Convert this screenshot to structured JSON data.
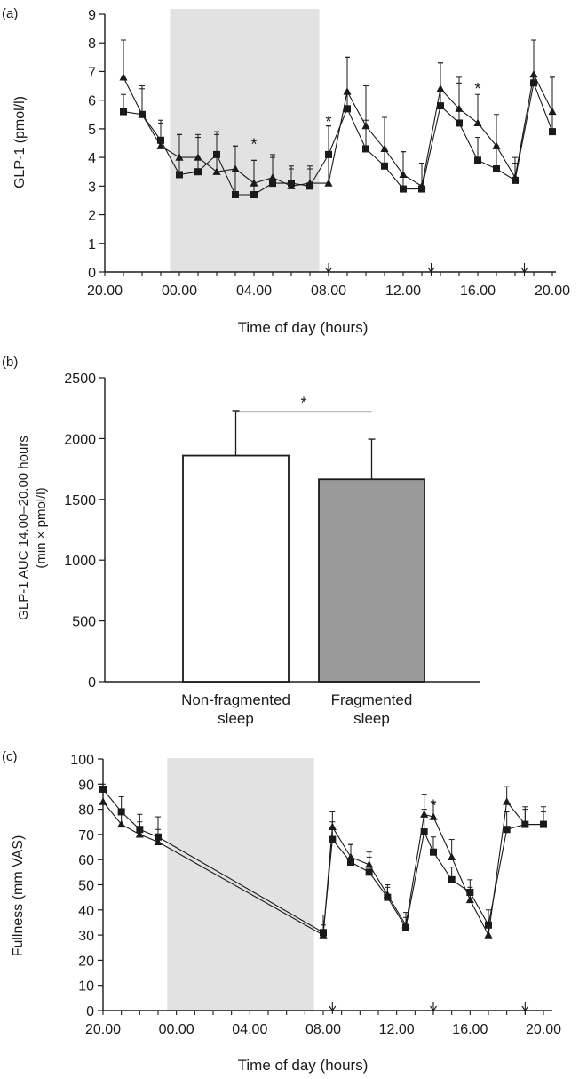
{
  "chart_data": [
    {
      "panel": "(a)",
      "type": "line",
      "ylabel": "GLP-1 (pmol/l)",
      "xlabel": "Time of day (hours)",
      "ylim": [
        0,
        9
      ],
      "yticks": [
        "0",
        "1",
        "2",
        "3",
        "4",
        "5",
        "6",
        "7",
        "8",
        "9"
      ],
      "xlim": [
        21,
        44
      ],
      "xticks": [
        {
          "x": 20,
          "label": "20.00"
        },
        {
          "x": 24,
          "label": "00.00"
        },
        {
          "x": 28,
          "label": "04.00"
        },
        {
          "x": 32,
          "label": "08.00"
        },
        {
          "x": 36,
          "label": "12.00"
        },
        {
          "x": 40,
          "label": "16.00"
        },
        {
          "x": 44,
          "label": "20.00"
        }
      ],
      "shaded_interval": [
        23.5,
        31.5
      ],
      "meal_arrows": [
        32.0,
        37.5,
        42.5
      ],
      "series": [
        {
          "marker": "triangle",
          "x": [
            21,
            22,
            23,
            24,
            25,
            26,
            27,
            28,
            29,
            30,
            31,
            32,
            33,
            34,
            35,
            36,
            37,
            38,
            39,
            40,
            41,
            42,
            43,
            44
          ],
          "y": [
            6.8,
            5.5,
            4.4,
            4.0,
            4.0,
            3.5,
            3.6,
            3.1,
            3.3,
            3.0,
            3.1,
            3.1,
            6.3,
            5.1,
            4.3,
            3.4,
            3.0,
            6.4,
            5.7,
            5.2,
            4.4,
            3.3,
            6.9,
            5.6
          ],
          "err": [
            1.3,
            1.0,
            0.8,
            0.8,
            0.7,
            1.3,
            0.8,
            0.8,
            0.7,
            0.7,
            0.6,
            2.0,
            1.2,
            1.4,
            1.1,
            0.8,
            0.8,
            0.9,
            0.9,
            1.0,
            1.1,
            0.7,
            1.2,
            1.2
          ]
        },
        {
          "marker": "square",
          "x": [
            21,
            22,
            23,
            24,
            25,
            26,
            27,
            28,
            29,
            30,
            31,
            32,
            33,
            34,
            35,
            36,
            37,
            38,
            39,
            40,
            41,
            42,
            43,
            44
          ],
          "y": [
            5.6,
            5.5,
            4.6,
            3.4,
            3.5,
            4.1,
            2.7,
            2.7,
            3.1,
            3.1,
            3.0,
            4.1,
            5.7,
            4.3,
            3.7,
            2.9,
            2.9,
            5.8,
            5.2,
            3.9,
            3.6,
            3.2,
            6.6,
            4.9
          ],
          "err": [
            0.6,
            0.9,
            0.7,
            1.4,
            1.3,
            0.8,
            1.7,
            1.2,
            1.0,
            0.5,
            0.6,
            1.0,
            1.8,
            1.0,
            1.7,
            1.3,
            0.9,
            1.5,
            1.6,
            0.8,
            0.8,
            0.6,
            1.5,
            1.9
          ]
        }
      ],
      "asterisks": [
        {
          "x": 28.0,
          "y": 4.45,
          "text": "*"
        },
        {
          "x": 32.0,
          "y": 5.25,
          "text": "*"
        },
        {
          "x": 40.0,
          "y": 6.4,
          "text": "*"
        }
      ]
    },
    {
      "panel": "(b)",
      "type": "bar",
      "ylabel_lines": [
        "GLP-1 AUC 14.00–20.00 hours",
        "(min × pmol/l)"
      ],
      "ylim": [
        0,
        2500
      ],
      "yticks": [
        "0",
        "500",
        "1000",
        "1500",
        "2000",
        "2500"
      ],
      "categories": [
        [
          "Non-fragmented",
          "sleep"
        ],
        [
          "Fragmented",
          "sleep"
        ]
      ],
      "values": [
        1860,
        1665
      ],
      "errors": [
        370,
        330
      ],
      "bar_colors": [
        "#ffffff",
        "#9a9a9a"
      ],
      "significance": {
        "text": "*",
        "y": 2220
      }
    },
    {
      "panel": "(c)",
      "type": "line",
      "ylabel": "Fullness (mm VAS)",
      "xlabel": "Time of day (hours)",
      "ylim": [
        0,
        100
      ],
      "yticks": [
        "0",
        "10",
        "20",
        "30",
        "40",
        "50",
        "60",
        "70",
        "80",
        "90",
        "100"
      ],
      "xlim": [
        20,
        44
      ],
      "xticks": [
        {
          "x": 20,
          "label": "20.00"
        },
        {
          "x": 24,
          "label": "00.00"
        },
        {
          "x": 28,
          "label": "04.00"
        },
        {
          "x": 32,
          "label": "08.00"
        },
        {
          "x": 36,
          "label": "12.00"
        },
        {
          "x": 40,
          "label": "16.00"
        },
        {
          "x": 44,
          "label": "20.00"
        }
      ],
      "shaded_interval": [
        23.5,
        31.5
      ],
      "meal_arrows": [
        32.5,
        38.0,
        43.0
      ],
      "series": [
        {
          "marker": "triangle",
          "x": [
            20,
            21,
            22,
            23,
            32,
            32.5,
            33.5,
            34.5,
            35.5,
            36.5,
            37.5,
            38,
            39,
            40,
            41,
            42,
            43,
            44
          ],
          "y": [
            83,
            74,
            70,
            67,
            30,
            73,
            61,
            58,
            46,
            34,
            78,
            77,
            61,
            44,
            30,
            83,
            74,
            74
          ],
          "err": [
            6,
            5,
            5,
            5,
            4,
            6,
            5,
            5,
            4,
            5,
            8,
            6,
            7,
            5,
            5,
            6,
            6,
            5
          ]
        },
        {
          "marker": "square",
          "x": [
            20,
            21,
            22,
            23,
            32,
            32.5,
            33.5,
            34.5,
            35.5,
            36.5,
            37.5,
            38,
            39,
            40,
            41,
            42,
            43,
            44
          ],
          "y": [
            88,
            79,
            72,
            69,
            31,
            68,
            59,
            55,
            45,
            33,
            71,
            63,
            52,
            47,
            34,
            72,
            74,
            74
          ],
          "err": [
            2,
            6,
            6,
            8,
            7,
            7,
            7,
            6,
            4,
            4,
            9,
            6,
            5,
            5,
            6,
            7,
            7,
            7
          ]
        }
      ],
      "asterisks": [
        {
          "x": 38.0,
          "y": 81.5,
          "text": "*"
        }
      ]
    }
  ]
}
